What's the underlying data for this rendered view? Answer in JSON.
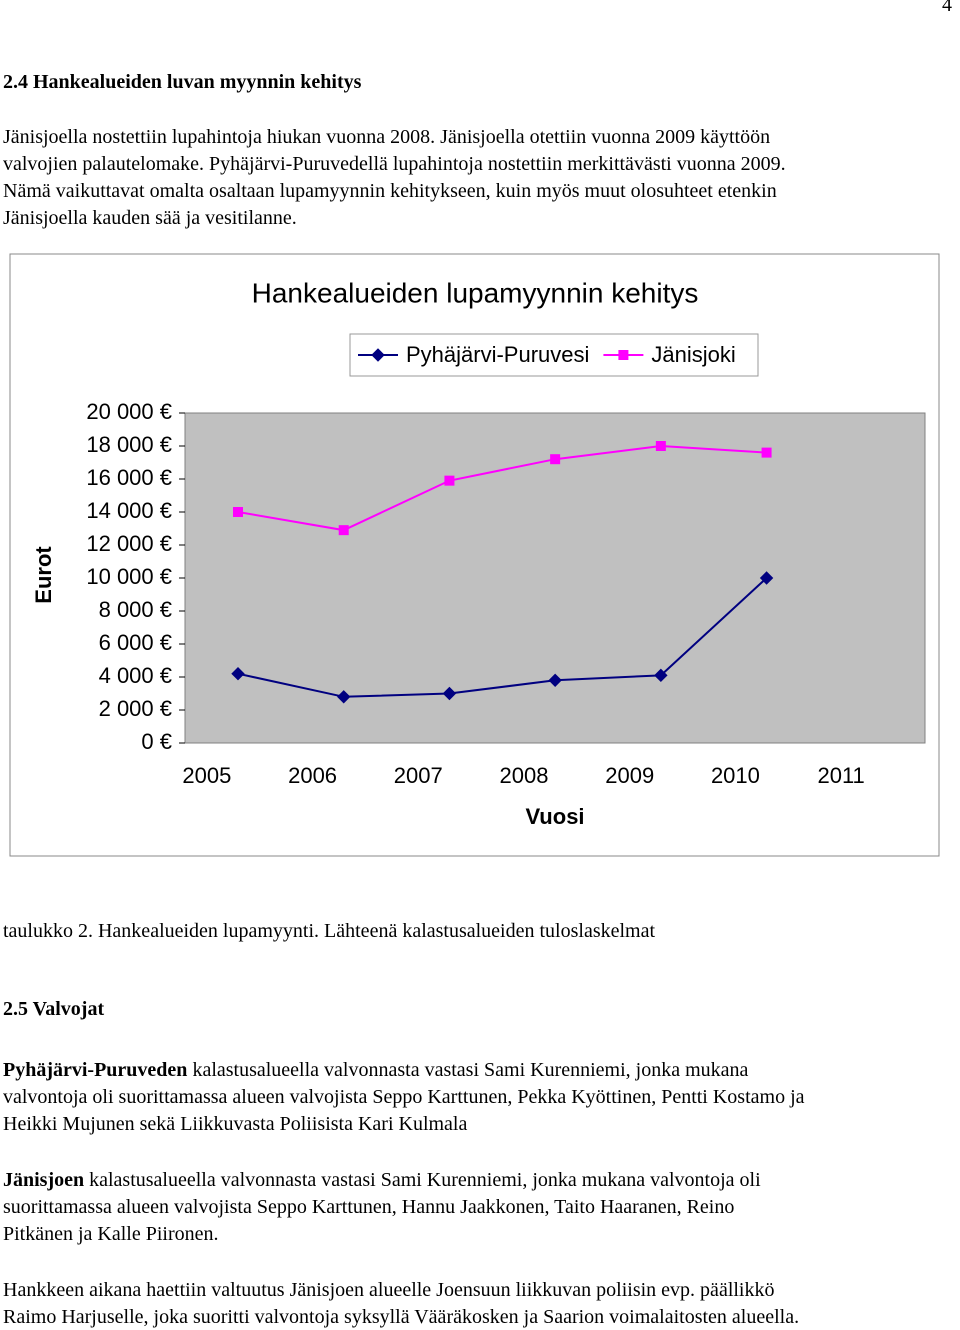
{
  "page_number": "4",
  "section1": {
    "heading": "2.4 Hankealueiden luvan myynnin kehitys",
    "lines": [
      "Jänisjoella nostettiin lupahintoja hiukan vuonna 2008. Jänisjoella otettiin vuonna 2009 käyttöön",
      "valvojien palautelomake. Pyhäjärvi-Puruvedellä lupahintoja nostettiin merkittävästi vuonna 2009.",
      "Nämä vaikuttavat omalta osaltaan lupamyynnin kehitykseen, kuin myös muut olosuhteet etenkin",
      "Jänisjoella kauden sää ja vesitilanne."
    ]
  },
  "chart_data": {
    "type": "line",
    "title": "Hankealueiden lupamyynnin kehitys",
    "x_label": "Vuosi",
    "y_label": "Eurot",
    "categories": [
      "2005",
      "2006",
      "2007",
      "2008",
      "2009",
      "2010",
      "2011"
    ],
    "series": [
      {
        "name": "Pyhäjärvi-Puruvesi",
        "color": "#000080",
        "marker": "diamond",
        "values": [
          4200,
          2800,
          3000,
          3800,
          4100,
          10000,
          null
        ]
      },
      {
        "name": "Jänisjoki",
        "color": "#ff00ff",
        "marker": "square",
        "values": [
          14000,
          12900,
          15900,
          17200,
          18000,
          17600,
          null
        ]
      }
    ],
    "ylim": [
      0,
      20000
    ],
    "yticks": [
      {
        "value": 0,
        "label": "0 €"
      },
      {
        "value": 2000,
        "label": "2 000 €"
      },
      {
        "value": 4000,
        "label": "4 000 €"
      },
      {
        "value": 6000,
        "label": "6 000 €"
      },
      {
        "value": 8000,
        "label": "8 000 €"
      },
      {
        "value": 10000,
        "label": "10 000 €"
      },
      {
        "value": 12000,
        "label": "12 000 €"
      },
      {
        "value": 14000,
        "label": "14 000 €"
      },
      {
        "value": 16000,
        "label": "16 000 €"
      },
      {
        "value": 18000,
        "label": "18 000 €"
      },
      {
        "value": 20000,
        "label": "20 000 €"
      }
    ],
    "grid": false,
    "legend": "top",
    "plot_background": "#c0c0c0"
  },
  "caption": "taulukko 2. Hankealueiden lupamyynti. Lähteenä kalastusalueiden tuloslaskelmat",
  "section2": {
    "heading": "2.5 Valvojat",
    "paragraphs": [
      {
        "lead": "Pyhäjärvi-Puruveden",
        "lines": [
          " kalastusalueella valvonnasta vastasi Sami Kurenniemi, jonka mukana",
          "valvontoja oli suorittamassa alueen valvojista Seppo Karttunen, Pekka Kyöttinen, Pentti Kostamo ja",
          "Heikki Mujunen sekä Liikkuvasta Poliisista Kari Kulmala"
        ]
      },
      {
        "lead": "Jänisjoen",
        "lines": [
          " kalastusalueella valvonnasta vastasi Sami Kurenniemi, jonka mukana valvontoja oli",
          "suorittamassa alueen valvojista Seppo Karttunen, Hannu Jaakkonen, Taito Haaranen, Reino",
          "Pitkänen ja Kalle Piironen."
        ]
      },
      {
        "lead": null,
        "lines": [
          "Hankkeen aikana haettiin valtuutus Jänisjoen alueelle Joensuun liikkuvan poliisin evp. päällikkö",
          "Raimo Harjuselle, joka suoritti valvontoja syksyllä Vääräkosken ja Saarion voimalaitosten alueella."
        ]
      }
    ]
  }
}
